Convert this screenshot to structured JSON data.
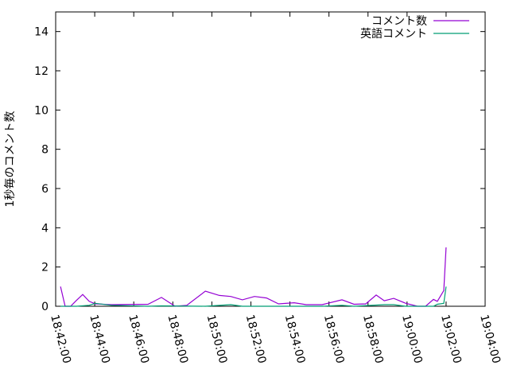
{
  "chart_data": {
    "type": "line",
    "title": "",
    "xlabel": "",
    "ylabel": "1秒毎のコメント数",
    "xlim": [
      "18:42:00",
      "19:04:00"
    ],
    "ylim": [
      0,
      15
    ],
    "x_ticks": [
      "18:42:00",
      "18:44:00",
      "18:46:00",
      "18:48:00",
      "18:50:00",
      "18:52:00",
      "18:54:00",
      "18:56:00",
      "18:58:00",
      "19:00:00",
      "19:02:00",
      "19:04:00"
    ],
    "y_ticks": [
      "0",
      "2",
      "4",
      "6",
      "8",
      "10",
      "12",
      "14"
    ],
    "grid": false,
    "legend_position": "top-right",
    "series": [
      {
        "name": "コメント数",
        "color": "#9400d3",
        "points": [
          [
            "18:42:15",
            1.0
          ],
          [
            "18:42:29",
            0
          ],
          [
            "18:42:46",
            0
          ],
          [
            "18:43:04",
            0.3
          ],
          [
            "18:43:23",
            0.6
          ],
          [
            "18:43:43",
            0.25
          ],
          [
            "18:44:02",
            0.12
          ],
          [
            "18:44:51",
            0.08
          ],
          [
            "18:46:44",
            0.1
          ],
          [
            "18:47:25",
            0.45
          ],
          [
            "18:48:07",
            0
          ],
          [
            "18:48:43",
            0.05
          ],
          [
            "18:49:40",
            0.77
          ],
          [
            "18:50:23",
            0.55
          ],
          [
            "18:50:58",
            0.5
          ],
          [
            "18:51:34",
            0.33
          ],
          [
            "18:52:11",
            0.5
          ],
          [
            "18:52:48",
            0.42
          ],
          [
            "18:53:25",
            0.12
          ],
          [
            "18:54:13",
            0.18
          ],
          [
            "18:54:50",
            0.08
          ],
          [
            "18:55:39",
            0.08
          ],
          [
            "18:56:40",
            0.33
          ],
          [
            "18:57:17",
            0.1
          ],
          [
            "18:57:53",
            0.12
          ],
          [
            "18:58:25",
            0.57
          ],
          [
            "18:58:50",
            0.28
          ],
          [
            "18:59:19",
            0.4
          ],
          [
            "18:59:56",
            0.15
          ],
          [
            "19:00:32",
            0
          ],
          [
            "19:00:57",
            0
          ],
          [
            "19:01:21",
            0.35
          ],
          [
            "19:01:33",
            0.25
          ],
          [
            "19:01:53",
            0.8
          ],
          [
            "19:02:00",
            3.0
          ]
        ]
      },
      {
        "name": "英語コメント",
        "color": "#009e73",
        "points": [
          [
            "18:42:15",
            0
          ],
          [
            "18:43:04",
            0
          ],
          [
            "18:43:43",
            0.05
          ],
          [
            "18:44:02",
            0.15
          ],
          [
            "18:44:51",
            0.05
          ],
          [
            "18:46:44",
            0
          ],
          [
            "18:47:25",
            0.02
          ],
          [
            "18:49:40",
            0
          ],
          [
            "18:50:58",
            0.08
          ],
          [
            "18:51:34",
            0
          ],
          [
            "18:55:39",
            0
          ],
          [
            "18:56:40",
            0.05
          ],
          [
            "18:57:17",
            0
          ],
          [
            "18:58:50",
            0.08
          ],
          [
            "18:59:19",
            0.08
          ],
          [
            "18:59:56",
            0
          ],
          [
            "19:01:21",
            0
          ],
          [
            "19:01:33",
            0.1
          ],
          [
            "19:01:53",
            0.15
          ],
          [
            "19:02:00",
            1.0
          ]
        ]
      }
    ]
  }
}
